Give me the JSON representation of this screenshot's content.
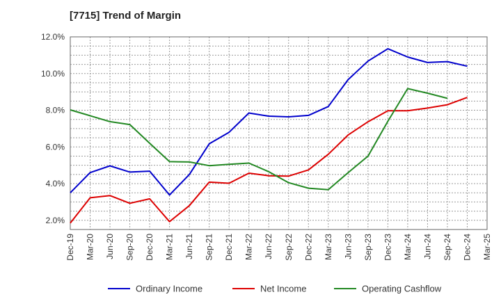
{
  "chart_data": {
    "type": "line",
    "title": "[7715]  Trend of Margin",
    "xlabel": "",
    "ylabel": "",
    "ylim": [
      1.5,
      12.0
    ],
    "y_ticks": [
      "2.0%",
      "4.0%",
      "6.0%",
      "8.0%",
      "10.0%",
      "12.0%"
    ],
    "y_tick_values": [
      2.0,
      4.0,
      6.0,
      8.0,
      10.0,
      12.0
    ],
    "categories": [
      "Dec-19",
      "Mar-20",
      "Jun-20",
      "Sep-20",
      "Dec-20",
      "Mar-21",
      "Jun-21",
      "Sep-21",
      "Dec-21",
      "Mar-22",
      "Jun-22",
      "Sep-22",
      "Dec-22",
      "Mar-23",
      "Jun-23",
      "Sep-23",
      "Dec-23",
      "Mar-24",
      "Jun-24",
      "Sep-24",
      "Dec-24",
      "Mar-25"
    ],
    "grid": true,
    "legend_position": "bottom",
    "series": [
      {
        "name": "Ordinary Income",
        "color": "#0000cc",
        "values": [
          3.5,
          4.6,
          4.97,
          4.63,
          4.68,
          3.38,
          4.5,
          6.17,
          6.8,
          7.85,
          7.68,
          7.64,
          7.72,
          8.2,
          9.67,
          10.68,
          11.35,
          10.9,
          10.6,
          10.65,
          10.4,
          null
        ]
      },
      {
        "name": "Net Income",
        "color": "#dd0000",
        "values": [
          1.85,
          3.23,
          3.35,
          2.93,
          3.17,
          1.93,
          2.8,
          4.08,
          4.02,
          4.57,
          4.43,
          4.41,
          4.75,
          5.6,
          6.65,
          7.37,
          7.97,
          7.97,
          8.12,
          8.3,
          8.7,
          null
        ]
      },
      {
        "name": "Operating Cashflow",
        "color": "#228822",
        "values": [
          8.02,
          7.7,
          7.38,
          7.22,
          6.2,
          5.2,
          5.18,
          4.98,
          5.05,
          5.12,
          4.65,
          4.05,
          3.75,
          3.67,
          4.6,
          5.5,
          7.4,
          9.18,
          8.93,
          8.65,
          null,
          null
        ]
      }
    ]
  }
}
